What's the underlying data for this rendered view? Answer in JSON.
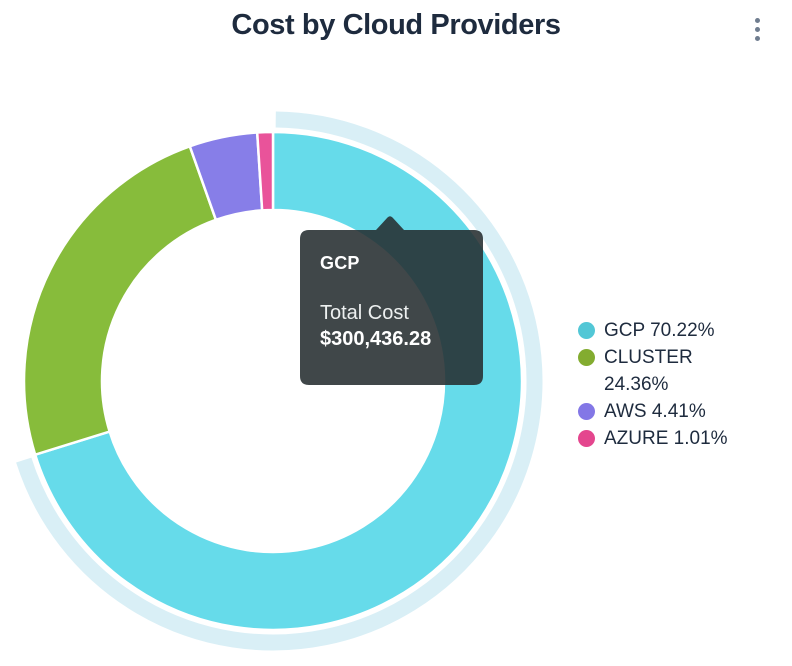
{
  "header": {
    "title": "Cost by Cloud Providers",
    "menu_icon": "kebab-vertical"
  },
  "chart_data": {
    "type": "pie",
    "variant": "donut",
    "title": "Cost by Cloud Providers",
    "start_angle_deg": 0,
    "direction": "clockwise",
    "legend_position": "right",
    "hover_highlight_color": "#D9EFF6",
    "categories": [
      "GCP",
      "CLUSTER",
      "AWS",
      "AZURE"
    ],
    "values": [
      70.22,
      24.36,
      4.41,
      1.01
    ],
    "slices": [
      {
        "label": "GCP",
        "percent": 70.22,
        "color": "#66DBEA",
        "legend_color": "#52C7D6",
        "legend_label": "GCP 70.22%",
        "highlighted": true
      },
      {
        "label": "CLUSTER",
        "percent": 24.36,
        "color": "#87BC3B",
        "legend_color": "#83AC30",
        "legend_label": "CLUSTER 24.36%",
        "highlighted": false
      },
      {
        "label": "AWS",
        "percent": 4.41,
        "color": "#877EE8",
        "legend_color": "#8377E6",
        "legend_label": "AWS 4.41%",
        "highlighted": false
      },
      {
        "label": "AZURE",
        "percent": 1.01,
        "color": "#E9539A",
        "legend_color": "#E4468E",
        "legend_label": "AZURE 1.01%",
        "highlighted": false
      }
    ]
  },
  "tooltip": {
    "title": "GCP",
    "metric_label": "Total Cost",
    "value": "$300,436.28",
    "background": "rgba(38,45,48,0.88)"
  },
  "colors": {
    "background": "#FFFFFF",
    "title_text": "#1E2B3E",
    "legend_text": "#1E2B3E",
    "menu_icon": "#6F7D8F",
    "slice_border": "#FFFFFF"
  }
}
